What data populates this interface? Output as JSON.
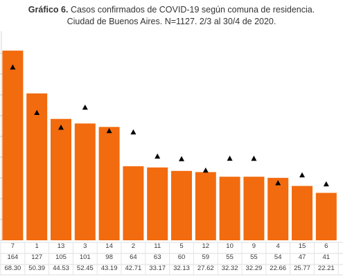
{
  "chart_data": {
    "type": "bar",
    "title_bold": "Gráfico 6.",
    "title_rest": "Casos confirmados de COVID-19 según comuna de residencia.",
    "subtitle": "Ciudad de Buenos Aires. N=1127. 2/3 al 30/4 de 2020.",
    "categories": [
      "7",
      "1",
      "13",
      "3",
      "14",
      "2",
      "11",
      "5",
      "12",
      "10",
      "9",
      "4",
      "15",
      "6"
    ],
    "series": [
      {
        "values": [
          164,
          127,
          105,
          101,
          98,
          64,
          63,
          60,
          59,
          55,
          55,
          54,
          47,
          41
        ],
        "color": "#f26b0f",
        "marker": "bar"
      },
      {
        "values": [
          68.3,
          50.39,
          44.53,
          52.45,
          43.19,
          42.71,
          33.17,
          32.13,
          27.62,
          32.32,
          32.29,
          22.66,
          25.77,
          22.21
        ],
        "color": "#000000",
        "marker": "triangle"
      }
    ],
    "table_rows": [
      [
        "164",
        "127",
        "105",
        "101",
        "98",
        "64",
        "63",
        "60",
        "59",
        "55",
        "55",
        "54",
        "47",
        "41"
      ],
      [
        "68.30",
        "50.39",
        "44.53",
        "52.45",
        "43.19",
        "42.71",
        "33.17",
        "32.13",
        "27.62",
        "32.32",
        "32.29",
        "22.66",
        "25.77",
        "22.21"
      ]
    ],
    "ylim_bars": [
      0,
      180
    ],
    "ylim_markers": [
      0,
      80
    ],
    "grid": false
  }
}
